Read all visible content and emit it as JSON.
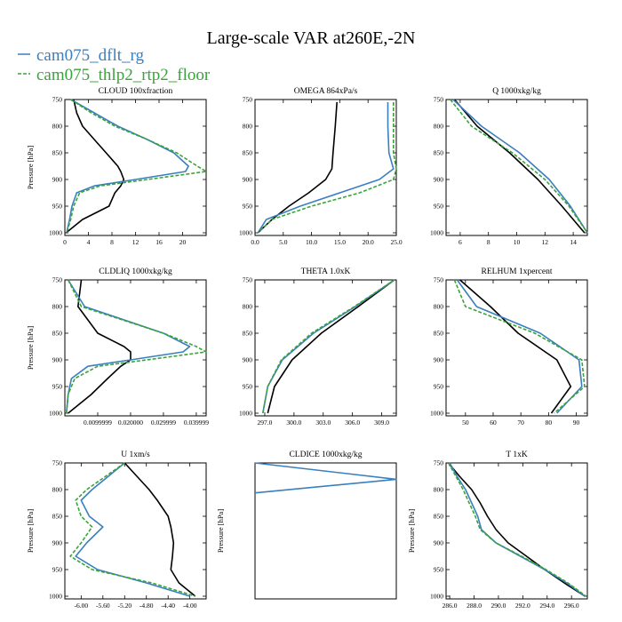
{
  "figure": {
    "title": "Large-scale VAR at260E,-2N",
    "colors": {
      "black": "#000000",
      "blue": "#3a7fbf",
      "green": "#3aa33a"
    },
    "legend": [
      {
        "label": "cam075_dflt_rg",
        "color": "#3a7fbf",
        "dashed": false
      },
      {
        "label": "cam075_thlp2_rtp2_floor",
        "color": "#3aa33a",
        "dashed": true
      }
    ]
  },
  "chart_data": [
    {
      "type": "line",
      "title": "CLOUD 100xfraction",
      "ylabel": "Pressure [hPa]",
      "xlim": [
        0,
        24
      ],
      "ylim": [
        1005,
        750
      ],
      "xticks": [
        0,
        4,
        8,
        12,
        16,
        20
      ],
      "xticklabels": [
        "0",
        "4",
        "8",
        "12",
        "16",
        "20"
      ],
      "yticks": [
        750,
        800,
        850,
        900,
        950,
        1000
      ],
      "yticklabels": [
        "750",
        "800",
        "850",
        "900",
        "950",
        "1000"
      ],
      "pressure": [
        750,
        775,
        800,
        825,
        850,
        875,
        885,
        900,
        912,
        925,
        950,
        975,
        1000
      ],
      "series": [
        {
          "color": "black",
          "values": [
            1.5,
            2,
            3,
            5,
            7,
            9,
            9.5,
            10,
            9.5,
            8.5,
            7.5,
            3,
            0.2
          ]
        },
        {
          "color": "blue",
          "values": [
            1,
            5,
            9,
            14,
            18.5,
            21,
            20.5,
            12,
            5,
            2,
            1.2,
            0.8,
            0.3
          ]
        },
        {
          "color": "green",
          "dashed": true,
          "values": [
            1,
            4.5,
            8.5,
            14,
            19,
            22.5,
            24,
            14,
            6,
            2.5,
            1.5,
            1,
            0.3
          ]
        }
      ]
    },
    {
      "type": "line",
      "title": "OMEGA 864xPa/s",
      "ylabel": "",
      "xlim": [
        0,
        25
      ],
      "ylim": [
        1005,
        750
      ],
      "xticks": [
        0,
        5,
        10,
        15,
        20,
        25
      ],
      "xticklabels": [
        "0.0",
        "5.0",
        "10.0",
        "15.0",
        "20.0",
        "25.0"
      ],
      "yticks": [
        750,
        800,
        850,
        900,
        950,
        1000
      ],
      "yticklabels": [
        "750",
        "800",
        "850",
        "900",
        "950",
        "1000"
      ],
      "pressure": [
        755,
        800,
        850,
        880,
        900,
        925,
        950,
        975,
        1000
      ],
      "series": [
        {
          "color": "black",
          "values": [
            14.5,
            14.2,
            13.8,
            13.6,
            12.5,
            9.5,
            6,
            3,
            0.5
          ]
        },
        {
          "color": "blue",
          "values": [
            23.5,
            23.5,
            23.7,
            24.5,
            22,
            15,
            8,
            2,
            0.5
          ]
        },
        {
          "color": "green",
          "dashed": true,
          "values": [
            24.5,
            24.5,
            24.5,
            25,
            24.5,
            18.5,
            10,
            3,
            0.5
          ]
        }
      ]
    },
    {
      "type": "line",
      "title": "Q 1000xkg/kg",
      "ylabel": "",
      "xlim": [
        5,
        15
      ],
      "ylim": [
        1005,
        750
      ],
      "xticks": [
        6,
        8,
        10,
        12,
        14
      ],
      "xticklabels": [
        "6",
        "8",
        "10",
        "12",
        "14"
      ],
      "yticks": [
        750,
        800,
        850,
        900,
        950,
        1000
      ],
      "yticklabels": [
        "750",
        "800",
        "850",
        "900",
        "950",
        "1000"
      ],
      "pressure": [
        750,
        800,
        850,
        900,
        950,
        1000
      ],
      "series": [
        {
          "color": "black",
          "values": [
            5.6,
            7.2,
            9.5,
            11.5,
            13.2,
            14.8
          ]
        },
        {
          "color": "blue",
          "values": [
            5.5,
            7.5,
            10.2,
            12.3,
            13.8,
            15
          ]
        },
        {
          "color": "green",
          "dashed": true,
          "values": [
            5.3,
            6.8,
            9.7,
            12,
            13.7,
            15
          ]
        }
      ]
    },
    {
      "type": "line",
      "title": "CLDLIQ 1000xkg/kg",
      "ylabel": "Pressure [hPa]",
      "xlim": [
        0,
        0.043
      ],
      "ylim": [
        1005,
        750
      ],
      "xticks": [
        0.01,
        0.02,
        0.03,
        0.04
      ],
      "xticklabels": [
        "0.0099999",
        "0.020000",
        "0.029999",
        "0.039999"
      ],
      "yticks": [
        750,
        800,
        850,
        900,
        950,
        1000
      ],
      "yticklabels": [
        "750",
        "800",
        "850",
        "900",
        "950",
        "1000"
      ],
      "pressure": [
        750,
        800,
        850,
        875,
        885,
        900,
        912,
        935,
        965,
        1000
      ],
      "series": [
        {
          "color": "black",
          "values": [
            0.005,
            0.004,
            0.01,
            0.018,
            0.02,
            0.02,
            0.017,
            0.013,
            0.008,
            0.001
          ]
        },
        {
          "color": "blue",
          "values": [
            0.001,
            0.006,
            0.03,
            0.038,
            0.036,
            0.02,
            0.007,
            0.002,
            0.001,
            0.0005
          ]
        },
        {
          "color": "green",
          "dashed": true,
          "values": [
            0.001,
            0.005,
            0.03,
            0.04,
            0.043,
            0.025,
            0.01,
            0.003,
            0.001,
            0.0005
          ]
        }
      ]
    },
    {
      "type": "line",
      "title": "THETA 1.0xK",
      "ylabel": "",
      "xlim": [
        296,
        310.5
      ],
      "ylim": [
        1005,
        750
      ],
      "xticks": [
        297,
        300,
        303,
        306,
        309
      ],
      "xticklabels": [
        "297.0",
        "300.0",
        "303.0",
        "306.0",
        "309.0"
      ],
      "yticks": [
        750,
        800,
        850,
        900,
        950,
        1000
      ],
      "yticklabels": [
        "750",
        "800",
        "850",
        "900",
        "950",
        "1000"
      ],
      "pressure": [
        750,
        800,
        850,
        900,
        950,
        1000
      ],
      "series": [
        {
          "color": "black",
          "values": [
            310.3,
            306.6,
            302.8,
            299.8,
            298,
            297.3
          ]
        },
        {
          "color": "blue",
          "values": [
            310.3,
            306.3,
            302,
            298.8,
            297.3,
            296.8
          ]
        },
        {
          "color": "green",
          "dashed": true,
          "values": [
            310.3,
            306.2,
            301.8,
            298.7,
            297.3,
            296.8
          ]
        }
      ]
    },
    {
      "type": "line",
      "title": "RELHUM 1xpercent",
      "ylabel": "",
      "xlim": [
        43,
        94
      ],
      "ylim": [
        1005,
        750
      ],
      "xticks": [
        50,
        60,
        70,
        80,
        90
      ],
      "xticklabels": [
        "50",
        "60",
        "70",
        "80",
        "90"
      ],
      "yticks": [
        750,
        800,
        850,
        900,
        950,
        1000
      ],
      "yticklabels": [
        "750",
        "800",
        "850",
        "900",
        "950",
        "1000"
      ],
      "pressure": [
        750,
        800,
        850,
        900,
        950,
        1000
      ],
      "series": [
        {
          "color": "black",
          "values": [
            48,
            59,
            69,
            83,
            88,
            81
          ]
        },
        {
          "color": "blue",
          "values": [
            47,
            54,
            77,
            91,
            92,
            83
          ]
        },
        {
          "color": "green",
          "dashed": true,
          "values": [
            46,
            50,
            75,
            92,
            93,
            82
          ]
        }
      ]
    },
    {
      "type": "line",
      "title": "U 1xm/s",
      "ylabel": "Pressure [hPa]",
      "xlim": [
        -6.3,
        -3.7
      ],
      "ylim": [
        1005,
        750
      ],
      "xticks": [
        -6.0,
        -5.6,
        -5.2,
        -4.8,
        -4.4,
        -4.0
      ],
      "xticklabels": [
        "-6.00",
        "-5.60",
        "-5.20",
        "-4.80",
        "-4.40",
        "-4.00"
      ],
      "yticks": [
        750,
        800,
        850,
        900,
        950,
        1000
      ],
      "yticklabels": [
        "750",
        "800",
        "850",
        "900",
        "950",
        "1000"
      ],
      "pressure": [
        750,
        800,
        820,
        850,
        870,
        900,
        925,
        950,
        975,
        1000
      ],
      "series": [
        {
          "color": "black",
          "values": [
            -5.2,
            -4.75,
            -4.6,
            -4.4,
            -4.35,
            -4.3,
            -4.32,
            -4.35,
            -4.2,
            -3.9
          ]
        },
        {
          "color": "blue",
          "values": [
            -5.2,
            -5.8,
            -6.0,
            -5.85,
            -5.6,
            -5.9,
            -6.1,
            -5.7,
            -4.8,
            -4.0
          ]
        },
        {
          "color": "green",
          "dashed": true,
          "values": [
            -5.2,
            -5.9,
            -6.1,
            -6.0,
            -5.8,
            -6.0,
            -6.2,
            -5.8,
            -4.7,
            -3.9
          ]
        }
      ]
    },
    {
      "type": "line",
      "title": "CLDICE 1000xkg/kg",
      "ylabel": "Pressure [hPa]",
      "xlim": [
        0,
        1
      ],
      "ylim": [
        1000,
        750
      ],
      "xticks": [],
      "xticklabels": [],
      "yticks": [],
      "yticklabels": [],
      "pressure": [
        750,
        780,
        805
      ],
      "series": [
        {
          "color": "blue",
          "values": [
            0,
            1,
            0
          ]
        }
      ]
    },
    {
      "type": "line",
      "title": "T 1xK",
      "ylabel": "Pressure [hPa]",
      "xlim": [
        285.7,
        297.3
      ],
      "ylim": [
        1005,
        750
      ],
      "xticks": [
        286,
        288,
        290,
        292,
        294,
        296
      ],
      "xticklabels": [
        "286.0",
        "288.0",
        "290.0",
        "292.0",
        "294.0",
        "296.0"
      ],
      "yticks": [
        750,
        800,
        850,
        900,
        950,
        1000
      ],
      "yticklabels": [
        "750",
        "800",
        "850",
        "900",
        "950",
        "1000"
      ],
      "pressure": [
        750,
        775,
        800,
        825,
        850,
        875,
        900,
        925,
        950,
        975,
        1000
      ],
      "series": [
        {
          "color": "black",
          "values": [
            285.9,
            286.8,
            287.8,
            288.5,
            289.1,
            289.8,
            290.8,
            292.3,
            293.8,
            295.4,
            297.1
          ]
        },
        {
          "color": "blue",
          "values": [
            286.0,
            286.6,
            287.3,
            287.8,
            288.3,
            288.6,
            289.8,
            291.8,
            293.8,
            295.6,
            297.1
          ]
        },
        {
          "color": "green",
          "dashed": true,
          "values": [
            285.9,
            286.5,
            287.1,
            287.6,
            288.1,
            288.5,
            289.8,
            291.9,
            293.9,
            295.7,
            297.2
          ]
        }
      ]
    }
  ]
}
